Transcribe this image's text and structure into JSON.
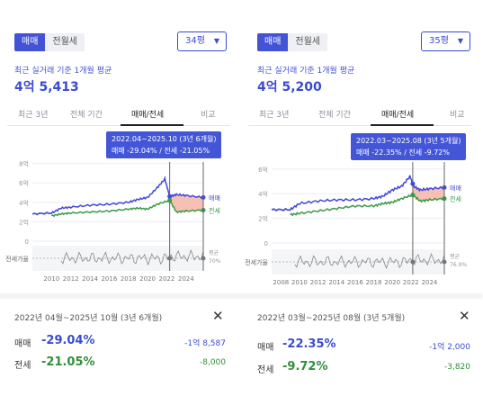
{
  "left": {
    "toggle": {
      "sale": "매매",
      "jeonse": "전월세"
    },
    "size": "34평",
    "subtitle": "최근 실거래 기준 1개월 평균",
    "price": "4억 5,413",
    "tabs": [
      "최근 3년",
      "전체 기간",
      "매매/전세",
      "비교"
    ],
    "tooltip": {
      "range": "2022.04~2025.10 (3년 6개월)",
      "detail": "매매 -29.04%  /  전세 -21.05%"
    },
    "summary": {
      "range": "2022년 04월~2025년 10월 (3년 6개월)",
      "sale_label": "매매",
      "sale_pct": "-29.04%",
      "sale_amt": "-1억 8,587",
      "jeonse_label": "전세",
      "jeonse_pct": "-21.05%",
      "jeonse_amt": "-8,000"
    },
    "chart_data": {
      "type": "line",
      "y_ticks": [
        "8억",
        "6억",
        "4억",
        "2억",
        "0"
      ],
      "x_ticks": [
        "2010",
        "2012",
        "2014",
        "2016",
        "2018",
        "2020",
        "2022",
        "2024"
      ],
      "series": [
        {
          "name": "매매",
          "x": [
            2008,
            2010,
            2011,
            2012,
            2014,
            2016,
            2018,
            2019,
            2020,
            2021,
            2021.8,
            2022.3,
            2023,
            2024,
            2025.8
          ],
          "values": [
            2.8,
            2.9,
            3.4,
            3.5,
            3.7,
            3.8,
            4.0,
            4.3,
            4.5,
            5.5,
            6.4,
            4.6,
            4.8,
            4.7,
            4.5
          ]
        },
        {
          "name": "전세",
          "x": [
            2010,
            2011,
            2012,
            2014,
            2016,
            2018,
            2019,
            2020,
            2021,
            2022.3,
            2023,
            2024,
            2025.8
          ],
          "values": [
            2.6,
            2.8,
            2.9,
            3.0,
            3.1,
            3.3,
            3.4,
            3.3,
            3.8,
            4.2,
            3.0,
            3.1,
            3.2
          ]
        }
      ],
      "ratio_label": "전세가율",
      "avg_label": "평균",
      "avg_value": "70%",
      "highlight_range": [
        "2022.04",
        "2025.10"
      ]
    }
  },
  "right": {
    "toggle": {
      "sale": "매매",
      "jeonse": "전월세"
    },
    "size": "35평",
    "subtitle": "최근 실거래 기준 1개월 평균",
    "price": "4억 5,200",
    "tabs": [
      "최근 3년",
      "전체 기간",
      "매매/전세",
      "비교"
    ],
    "tooltip": {
      "range": "2022.03~2025.08 (3년 5개월)",
      "detail": "매매 -22.35%  /  전세 -9.72%"
    },
    "summary": {
      "range": "2022년 03월~2025년 08월 (3년 5개월)",
      "sale_label": "매매",
      "sale_pct": "-22.35%",
      "sale_amt": "-1억 2,000",
      "jeonse_label": "전세",
      "jeonse_pct": "-9.72%",
      "jeonse_amt": "-3,820"
    },
    "chart_data": {
      "type": "line",
      "y_ticks": [
        "6억",
        "4억",
        "2억",
        "0"
      ],
      "x_ticks": [
        "2008",
        "2010",
        "2012",
        "2014",
        "2016",
        "2018",
        "2020",
        "2022",
        "2024"
      ],
      "series": [
        {
          "name": "매매",
          "x": [
            2007,
            2009,
            2010,
            2012,
            2014,
            2016,
            2018,
            2019,
            2020,
            2021,
            2021.9,
            2022.3,
            2023,
            2024,
            2025.6
          ],
          "values": [
            2.7,
            2.7,
            3.2,
            3.4,
            3.5,
            3.5,
            3.6,
            3.8,
            4.3,
            4.6,
            5.4,
            4.6,
            4.3,
            4.4,
            4.5
          ]
        },
        {
          "name": "전세",
          "x": [
            2009,
            2010,
            2012,
            2014,
            2016,
            2018,
            2019,
            2020,
            2021,
            2022.2,
            2023,
            2024,
            2025.6
          ],
          "values": [
            2.3,
            2.4,
            2.6,
            2.8,
            3.0,
            3.0,
            3.2,
            3.3,
            3.6,
            3.9,
            3.4,
            3.5,
            3.6
          ]
        }
      ],
      "ratio_label": "전세가율",
      "avg_label": "평균",
      "avg_value": "76.9%",
      "highlight_range": [
        "2022.03",
        "2025.08"
      ]
    }
  }
}
